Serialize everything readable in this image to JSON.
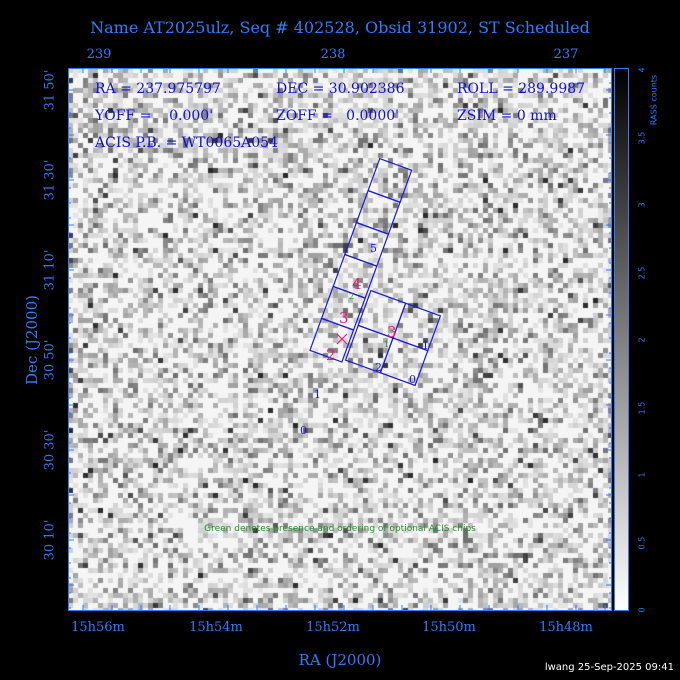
{
  "title": "Name AT2025ulz, Seq # 402528, Obsid 31902, ST Scheduled",
  "top_axis": {
    "labels": [
      "239",
      "238",
      "237"
    ]
  },
  "y_axis": {
    "label": "Dec (J2000)",
    "ticks": [
      "31 50'",
      "31 30'",
      "31 10'",
      "30 50'",
      "30 30'",
      "30 10'"
    ]
  },
  "x_axis": {
    "label": "RA (J2000)",
    "ticks": [
      "15h56m",
      "15h54m",
      "15h52m",
      "15h50m",
      "15h48m"
    ]
  },
  "info": {
    "ra": "RA = 237.975797",
    "dec": "DEC = 30.902386",
    "roll": "ROLL = 289.9987",
    "yoff": "YOFF =    0.000'",
    "zoff": "ZOFF =   0.0000'",
    "zsim": "ZSIM = 0 mm",
    "acis_pb": "ACIS P.B. = WT0065A054"
  },
  "note": "Green denotes presence and ordering of optional ACIS chips",
  "colorbar": {
    "title": "RASS counts",
    "ticks": [
      "4",
      "3.5",
      "3",
      "2.5",
      "2",
      "1.5",
      "1",
      "0.5",
      "0"
    ]
  },
  "chips": {
    "left_column": [
      "5",
      "4",
      "3",
      "2",
      "1",
      "0"
    ],
    "right_array": [
      "3",
      "1",
      "2",
      "0"
    ],
    "optional": [
      "2",
      "1"
    ]
  },
  "footer": "lwang 25-Sep-2025 09:41",
  "colors": {
    "axis": "#2e7dff",
    "text": "#1010d0",
    "chip_outline": "#1a1ad8",
    "magenta": "#e0207a",
    "green": "#2a8f2a"
  }
}
